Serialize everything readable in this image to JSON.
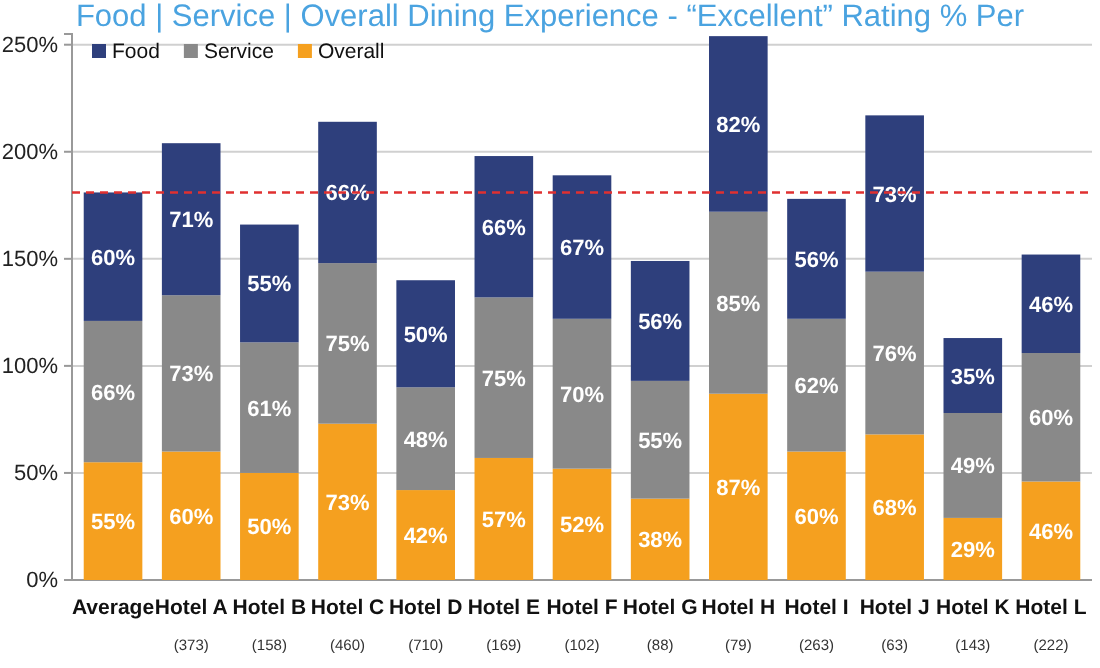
{
  "chart_data": {
    "type": "bar",
    "title": "Food | Service | Overall Dining Experience - “Excellent” Rating % Per",
    "categories": [
      "Average",
      "Hotel A\n(373)",
      "Hotel B\n(158)",
      "Hotel C\n(460)",
      "Hotel D\n(710)",
      "Hotel E\n(169)",
      "Hotel F\n(102)",
      "Hotel G\n(88)",
      "Hotel H\n(79)",
      "Hotel I\n(263)",
      "Hotel J\n(63)",
      "Hotel K\n(143)",
      "Hotel L\n(222)"
    ],
    "stacked": true,
    "series": [
      {
        "name": "Overall",
        "color": "#f5a01f",
        "values": [
          55,
          60,
          50,
          73,
          42,
          57,
          52,
          38,
          87,
          60,
          68,
          29,
          46
        ],
        "value_labels": [
          "55%",
          "60%",
          "50%",
          "73%",
          "42%",
          "57%",
          "52%",
          "38%",
          "87%",
          "60%",
          "68%",
          "29%",
          "46%"
        ]
      },
      {
        "name": "Service",
        "color": "#898989",
        "values": [
          66,
          73,
          61,
          75,
          48,
          75,
          70,
          55,
          85,
          62,
          76,
          49,
          60
        ],
        "value_labels": [
          "66%",
          "73%",
          "61%",
          "75%",
          "48%",
          "75%",
          "70%",
          "55%",
          "85%",
          "62%",
          "76%",
          "49%",
          "60%"
        ]
      },
      {
        "name": "Food",
        "color": "#2e3f7c",
        "values": [
          60,
          71,
          55,
          66,
          50,
          66,
          67,
          56,
          82,
          56,
          73,
          35,
          46
        ],
        "value_labels": [
          "60%",
          "71%",
          "55%",
          "66%",
          "50%",
          "66%",
          "67%",
          "56%",
          "82%",
          "56%",
          "73%",
          "35%",
          "46%"
        ]
      }
    ],
    "ylim": [
      0,
      255
    ],
    "yticks": [
      {
        "value": 0,
        "label": "0%"
      },
      {
        "value": 50,
        "label": "50%"
      },
      {
        "value": 100,
        "label": "100%"
      },
      {
        "value": 150,
        "label": "150%"
      },
      {
        "value": 200,
        "label": "200%"
      },
      {
        "value": 250,
        "label": "250%"
      }
    ],
    "grid": "y",
    "legend": "top left",
    "ref_lines": [
      {
        "axis": "y",
        "value": 181,
        "color": "#e03030",
        "line_style": "dashed"
      }
    ]
  }
}
